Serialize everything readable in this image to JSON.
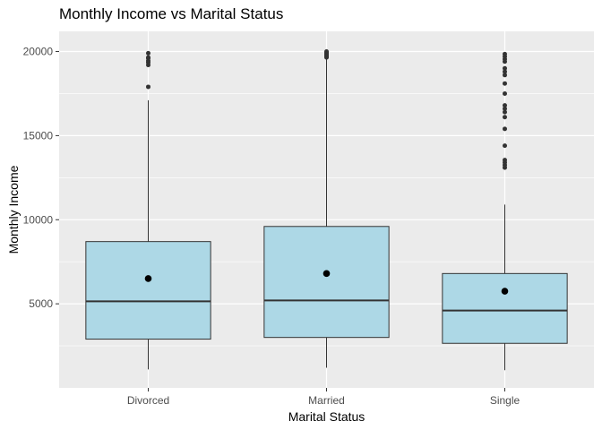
{
  "chart_data": {
    "type": "boxplot",
    "title": "Monthly Income vs Marital Status",
    "xlabel": "Marital Status",
    "ylabel": "Monthly Income",
    "ylim": [
      0,
      21200
    ],
    "yticks": [
      5000,
      10000,
      15000,
      20000
    ],
    "ytick_labels": [
      "5000",
      "10000",
      "15000",
      "20000"
    ],
    "categories": [
      "Divorced",
      "Married",
      "Single"
    ],
    "boxes": [
      {
        "category": "Divorced",
        "whisker_low": 1100,
        "q1": 2900,
        "median": 5150,
        "q3": 8700,
        "whisker_high": 17100,
        "mean": 6500,
        "outliers": [
          17900,
          19200,
          19350,
          19450,
          19600,
          19650,
          19900
        ]
      },
      {
        "category": "Married",
        "whisker_low": 1200,
        "q1": 3000,
        "median": 5200,
        "q3": 9600,
        "whisker_high": 19600,
        "mean": 6800,
        "outliers": [
          19650,
          19700,
          19750,
          19800,
          19850,
          19900,
          19950,
          20000
        ]
      },
      {
        "category": "Single",
        "whisker_low": 1050,
        "q1": 2650,
        "median": 4600,
        "q3": 6800,
        "whisker_high": 10900,
        "mean": 5750,
        "outliers": [
          13100,
          13250,
          13400,
          13550,
          14400,
          15400,
          16100,
          16400,
          16600,
          16800,
          17500,
          18100,
          18600,
          18800,
          19000,
          19400,
          19550,
          19700,
          19850
        ]
      }
    ],
    "colors": {
      "box_fill": "#add8e6",
      "box_stroke": "#333333",
      "panel_bg": "#ebebeb",
      "grid_major": "#ffffff",
      "point": "#000000",
      "outlier": "#333333"
    }
  }
}
